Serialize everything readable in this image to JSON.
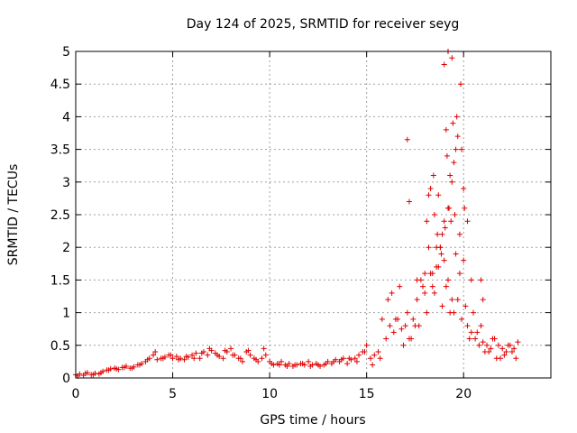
{
  "chart_data": {
    "type": "scatter",
    "title": "Day 124 of 2025, SRMTID for receiver seyg",
    "xlabel": "GPS time / hours",
    "ylabel": "SRMTID / TECUs",
    "xlim": [
      0,
      24.5
    ],
    "ylim": [
      0,
      5
    ],
    "xticks": [
      0,
      5,
      10,
      15,
      20
    ],
    "xtick_labels": [
      "0",
      "5",
      "10",
      "15",
      "20"
    ],
    "yticks": [
      0,
      0.5,
      1,
      1.5,
      2,
      2.5,
      3,
      3.5,
      4,
      4.5,
      5
    ],
    "ytick_labels": [
      "0",
      "0.5",
      "1",
      "1.5",
      "2",
      "2.5",
      "3",
      "3.5",
      "4",
      "4.5",
      "5"
    ],
    "grid": true,
    "marker": "+",
    "color": "#e00000",
    "series": [
      {
        "name": "SRMTID",
        "x": [
          0.0,
          0.2,
          0.4,
          0.6,
          0.8,
          1.0,
          1.2,
          1.4,
          1.6,
          1.8,
          2.0,
          2.2,
          2.4,
          2.6,
          2.8,
          3.0,
          3.2,
          3.4,
          3.6,
          3.8,
          4.0,
          4.2,
          4.4,
          4.6,
          4.8,
          5.0,
          5.2,
          5.4,
          5.6,
          5.8,
          6.0,
          6.2,
          6.4,
          6.6,
          6.8,
          7.0,
          7.2,
          7.4,
          7.6,
          7.8,
          8.0,
          8.2,
          8.4,
          8.6,
          8.8,
          9.0,
          9.2,
          9.4,
          9.6,
          9.8,
          10.0,
          10.2,
          10.4,
          10.6,
          10.8,
          11.0,
          11.2,
          11.4,
          11.6,
          11.8,
          12.0,
          12.2,
          12.4,
          12.6,
          12.8,
          13.0,
          13.2,
          13.4,
          13.6,
          13.8,
          14.0,
          14.2,
          14.4,
          14.6,
          14.8,
          15.0,
          15.2,
          15.4,
          15.6,
          15.8,
          16.0,
          16.2,
          16.4,
          16.6,
          16.8,
          17.0,
          17.2,
          17.4,
          17.6,
          17.8,
          18.0,
          18.2,
          18.4,
          18.6,
          18.8,
          19.0,
          19.2,
          19.4,
          19.6,
          19.8,
          20.0,
          20.2,
          20.4,
          20.6,
          20.8,
          21.0,
          21.2,
          21.4,
          21.6,
          21.8,
          22.0,
          22.2,
          22.4,
          22.6,
          22.8,
          0.1,
          0.5,
          0.9,
          1.3,
          1.7,
          2.1,
          2.5,
          2.9,
          3.3,
          3.7,
          4.1,
          4.5,
          4.9,
          5.3,
          5.7,
          6.1,
          6.5,
          6.9,
          7.3,
          7.7,
          8.1,
          8.5,
          8.9,
          9.3,
          9.7,
          10.1,
          10.5,
          10.9,
          11.3,
          11.7,
          12.1,
          12.5,
          12.9,
          13.3,
          13.7,
          14.1,
          14.5,
          14.9,
          15.3,
          15.7,
          16.1,
          16.5,
          16.9,
          17.3,
          17.7,
          18.1,
          18.5,
          18.9,
          19.3,
          19.7,
          20.1,
          20.5,
          20.9,
          21.3,
          21.7,
          22.1,
          22.5,
          16.3,
          16.7,
          17.1,
          17.5,
          17.9,
          18.3,
          18.7,
          19.1,
          19.5,
          19.9,
          20.3,
          20.7,
          21.1,
          21.5,
          21.9,
          22.3,
          22.7,
          17.2,
          17.6,
          18.0,
          18.4,
          18.8,
          19.0,
          19.2,
          19.4,
          19.6,
          19.8,
          20.0,
          18.6,
          18.9,
          19.1,
          19.3,
          19.5,
          19.7,
          19.9,
          18.2,
          18.5,
          18.7,
          19.05,
          19.25,
          19.45,
          19.65,
          19.85,
          20.05,
          19.15,
          19.35,
          19.55,
          19.0,
          19.2,
          19.4,
          17.1,
          18.1,
          18.3,
          18.45,
          18.65,
          18.85,
          20.2,
          20.4,
          20.9,
          21.0
        ],
        "y": [
          0.05,
          0.06,
          0.04,
          0.08,
          0.05,
          0.07,
          0.06,
          0.1,
          0.12,
          0.14,
          0.15,
          0.13,
          0.16,
          0.18,
          0.15,
          0.17,
          0.2,
          0.22,
          0.25,
          0.3,
          0.35,
          0.28,
          0.3,
          0.32,
          0.35,
          0.3,
          0.33,
          0.3,
          0.28,
          0.32,
          0.35,
          0.38,
          0.3,
          0.4,
          0.35,
          0.42,
          0.38,
          0.33,
          0.3,
          0.4,
          0.45,
          0.35,
          0.3,
          0.25,
          0.4,
          0.35,
          0.3,
          0.25,
          0.3,
          0.35,
          0.25,
          0.2,
          0.22,
          0.25,
          0.2,
          0.22,
          0.18,
          0.2,
          0.22,
          0.2,
          0.25,
          0.2,
          0.22,
          0.18,
          0.2,
          0.25,
          0.22,
          0.28,
          0.25,
          0.3,
          0.22,
          0.28,
          0.3,
          0.35,
          0.4,
          0.5,
          0.3,
          0.35,
          0.4,
          0.9,
          0.6,
          0.8,
          0.7,
          0.9,
          0.75,
          0.8,
          0.6,
          0.9,
          1.2,
          1.5,
          1.6,
          2.0,
          1.4,
          1.7,
          2.0,
          1.8,
          1.5,
          1.2,
          1.9,
          1.6,
          1.8,
          0.8,
          0.7,
          0.6,
          0.5,
          0.55,
          0.5,
          0.45,
          0.6,
          0.5,
          0.45,
          0.4,
          0.5,
          0.45,
          0.55,
          0.03,
          0.07,
          0.05,
          0.08,
          0.12,
          0.14,
          0.16,
          0.15,
          0.2,
          0.28,
          0.4,
          0.3,
          0.35,
          0.28,
          0.33,
          0.3,
          0.38,
          0.45,
          0.35,
          0.42,
          0.35,
          0.3,
          0.42,
          0.28,
          0.45,
          0.22,
          0.2,
          0.18,
          0.2,
          0.22,
          0.18,
          0.2,
          0.22,
          0.25,
          0.28,
          0.3,
          0.25,
          0.4,
          0.2,
          0.3,
          1.2,
          0.9,
          0.5,
          0.6,
          0.8,
          1.0,
          1.3,
          1.1,
          1.0,
          1.2,
          1.1,
          1.0,
          0.8,
          0.4,
          0.3,
          0.35,
          0.4,
          1.3,
          1.4,
          1.0,
          0.8,
          1.4,
          1.6,
          1.7,
          1.4,
          1.0,
          0.9,
          0.6,
          0.7,
          0.4,
          0.6,
          0.3,
          0.5,
          0.3,
          2.7,
          1.5,
          1.3,
          1.6,
          2.0,
          2.4,
          2.6,
          3.0,
          3.5,
          2.2,
          2.9,
          2.0,
          2.2,
          3.8,
          3.1,
          3.3,
          3.7,
          3.5,
          2.8,
          2.5,
          2.8,
          2.3,
          2.6,
          3.9,
          4.0,
          4.5,
          2.6,
          3.4,
          2.4,
          2.5,
          4.8,
          5.0,
          4.9,
          3.65,
          2.4,
          2.9,
          3.1,
          2.2,
          1.9,
          2.4,
          1.5,
          1.5,
          1.2
        ]
      }
    ]
  }
}
